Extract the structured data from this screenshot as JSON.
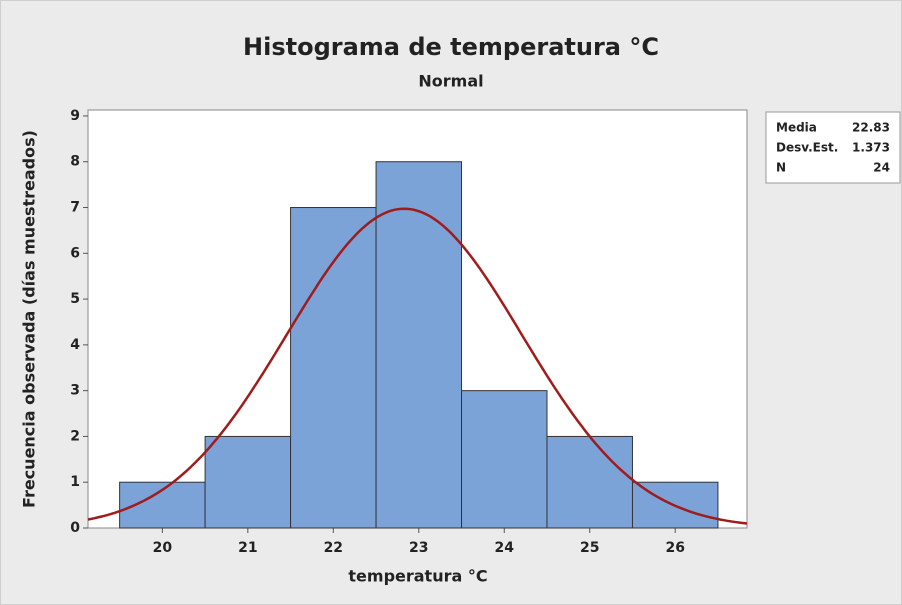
{
  "chart_data": {
    "type": "histogram",
    "title": "Histograma de temperatura °C",
    "subtitle": "Normal",
    "xlabel": "temperatura °C",
    "ylabel": "Frecuencia observada (días muestreados)",
    "bins": [
      19.5,
      20.5,
      21.5,
      22.5,
      23.5,
      24.5,
      25.5,
      26.5
    ],
    "values": [
      1,
      2,
      7,
      8,
      3,
      2,
      1
    ],
    "color": "#7ba3d8",
    "curve_color": "#a01c1c",
    "xlim": [
      19.13,
      26.84
    ],
    "ylim": [
      0,
      9.13
    ],
    "xticks": [
      20,
      21,
      22,
      23,
      24,
      25,
      26
    ],
    "yticks": [
      0,
      1,
      2,
      3,
      4,
      5,
      6,
      7,
      8,
      9
    ],
    "stats": [
      {
        "label": "Media",
        "value": 22.83
      },
      {
        "label": "Desv.Est.",
        "value": 1.373
      },
      {
        "label": "N",
        "value": 24
      }
    ]
  }
}
